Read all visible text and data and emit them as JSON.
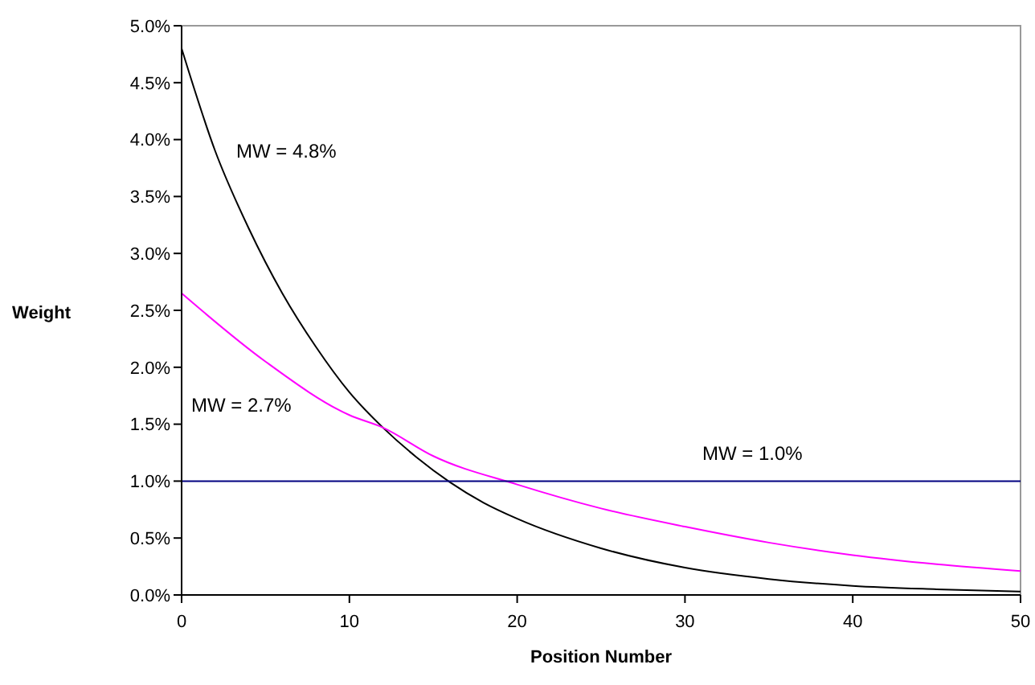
{
  "chart_data": {
    "type": "line",
    "xlabel": "Position Number",
    "ylabel": "Weight",
    "xlim": [
      0,
      50
    ],
    "xticks": [
      0,
      10,
      20,
      30,
      40,
      50
    ],
    "ylim": [
      0,
      5
    ],
    "yticks": [
      {
        "value": 0,
        "label": "0.0%"
      },
      {
        "value": 0.5,
        "label": "0.5%"
      },
      {
        "value": 1,
        "label": "1.0%"
      },
      {
        "value": 1.5,
        "label": "1.5%"
      },
      {
        "value": 2,
        "label": "2.0%"
      },
      {
        "value": 2.5,
        "label": "2.5%"
      },
      {
        "value": 3,
        "label": "3.0%"
      },
      {
        "value": 3.5,
        "label": "3.5%"
      },
      {
        "value": 4,
        "label": "4.0%"
      },
      {
        "value": 4.5,
        "label": "4.5%"
      },
      {
        "value": 5,
        "label": "5.0%"
      }
    ],
    "grid": false,
    "series": [
      {
        "name": "MW = 4.8%",
        "color": "#000000",
        "x": [
          0,
          2,
          4,
          6,
          8,
          10,
          12,
          14,
          16,
          18,
          20,
          25,
          30,
          35,
          40,
          45,
          50
        ],
        "values": [
          4.8,
          3.9,
          3.22,
          2.65,
          2.18,
          1.78,
          1.47,
          1.21,
          0.99,
          0.81,
          0.67,
          0.41,
          0.24,
          0.14,
          0.08,
          0.05,
          0.03
        ]
      },
      {
        "name": "MW = 2.7%",
        "color": "#ff00ff",
        "x": [
          0,
          5,
          10,
          12,
          15,
          20,
          25,
          30,
          35,
          40,
          45,
          50
        ],
        "values": [
          2.65,
          2.05,
          1.58,
          1.47,
          1.22,
          0.97,
          0.76,
          0.6,
          0.46,
          0.35,
          0.27,
          0.21
        ]
      },
      {
        "name": "MW = 1.0%",
        "color": "#000080",
        "x": [
          0,
          50
        ],
        "values": [
          1,
          1
        ]
      }
    ]
  }
}
